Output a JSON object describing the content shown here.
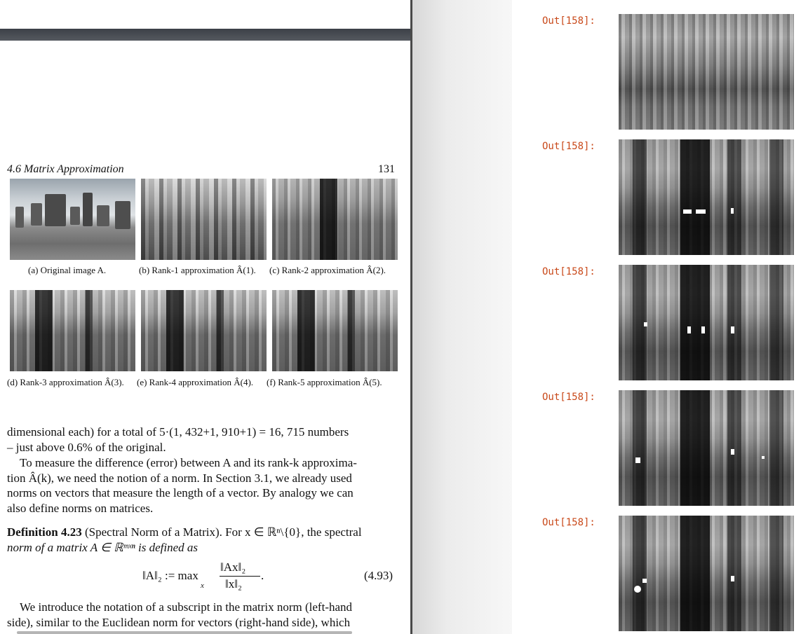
{
  "pdf": {
    "running_head": "4.6  Matrix Approximation",
    "page_number": "131",
    "figure": {
      "captions": [
        "(a) Original image A.",
        "(b) Rank-1 approximation Â(1).",
        "(c) Rank-2 approximation Â(2).",
        "(d) Rank-3 approximation Â(3).",
        "(e) Rank-4 approximation Â(4).",
        "(f) Rank-5 approximation Â(5)."
      ]
    },
    "paragraph_1": [
      "dimensional each) for a total of 5·(1, 432+1, 910+1) = 16, 715 numbers",
      "– just above 0.6% of the original."
    ],
    "paragraph_2": [
      "To measure the difference (error) between A and its rank-k approxima-",
      "tion Â(k), we need the notion of a norm. In Section 3.1, we already used",
      "norms on vectors that measure the length of a vector. By analogy we can",
      "also define norms on matrices."
    ],
    "definition": {
      "label": "Definition 4.23",
      "title": "(Spectral Norm of a Matrix).",
      "line_1_rest": "For x ∈ ℝⁿ\\{0}, the spectral",
      "line_2": "norm of a matrix A ∈ ℝᵐˣⁿ is defined as"
    },
    "equation": {
      "lhs": "‖A‖₂ := max",
      "under": "x",
      "numerator": "‖Ax‖₂",
      "denominator": "‖x‖₂",
      "number": "(4.93)"
    },
    "paragraph_3": [
      "We introduce the notation of a subscript in the matrix norm (left-hand",
      "side), similar to the Euclidean norm for vectors (right-hand side), which"
    ]
  },
  "notebook": {
    "outputs": [
      {
        "label": "Out[158]:"
      },
      {
        "label": "Out[158]:"
      },
      {
        "label": "Out[158]:"
      },
      {
        "label": "Out[158]:"
      },
      {
        "label": "Out[158]:"
      }
    ]
  }
}
